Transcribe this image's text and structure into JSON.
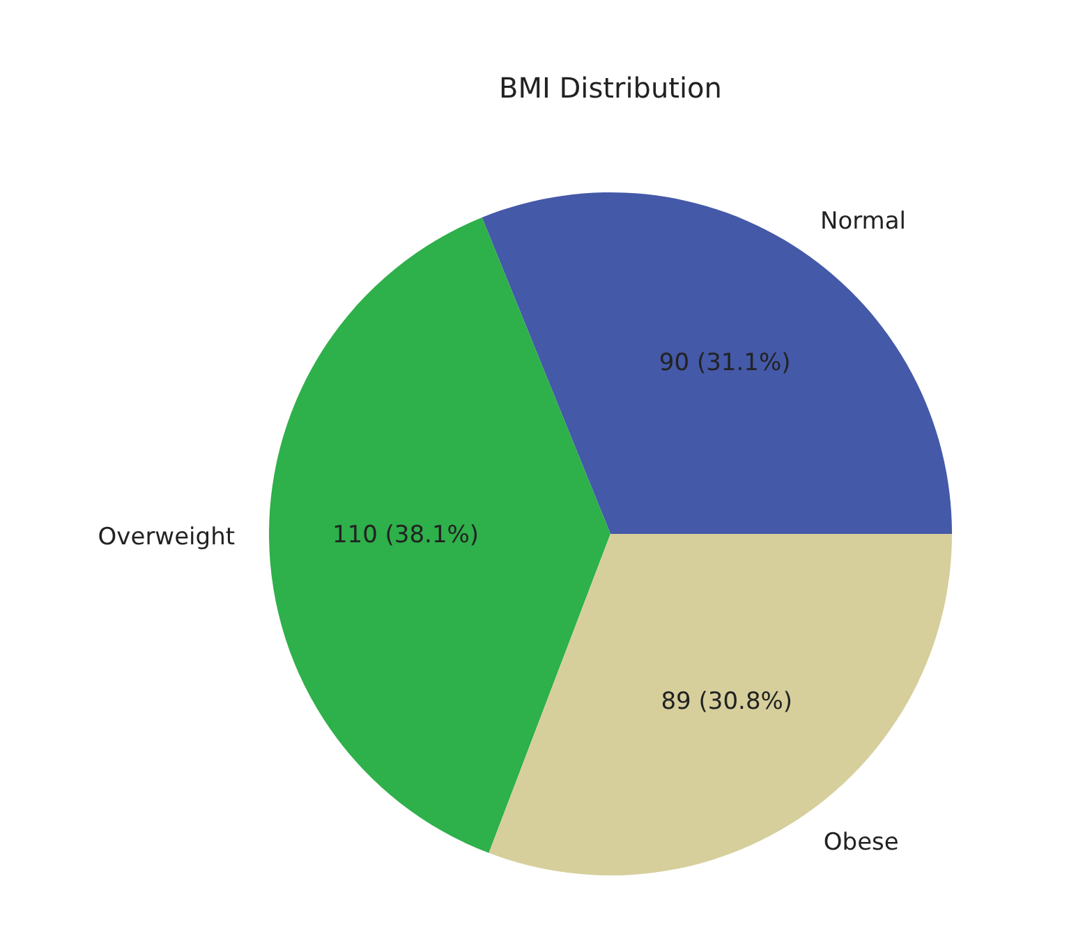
{
  "chart_data": {
    "type": "pie",
    "title": "BMI Distribution",
    "categories": [
      "Normal",
      "Overweight",
      "Obese"
    ],
    "values": [
      90,
      110,
      89
    ],
    "colors": [
      "#4459a8",
      "#2eb04a",
      "#d6cf9c"
    ],
    "value_labels": [
      "90 (31.1%)",
      "110 (38.1%)",
      "89 (30.8%)"
    ]
  }
}
